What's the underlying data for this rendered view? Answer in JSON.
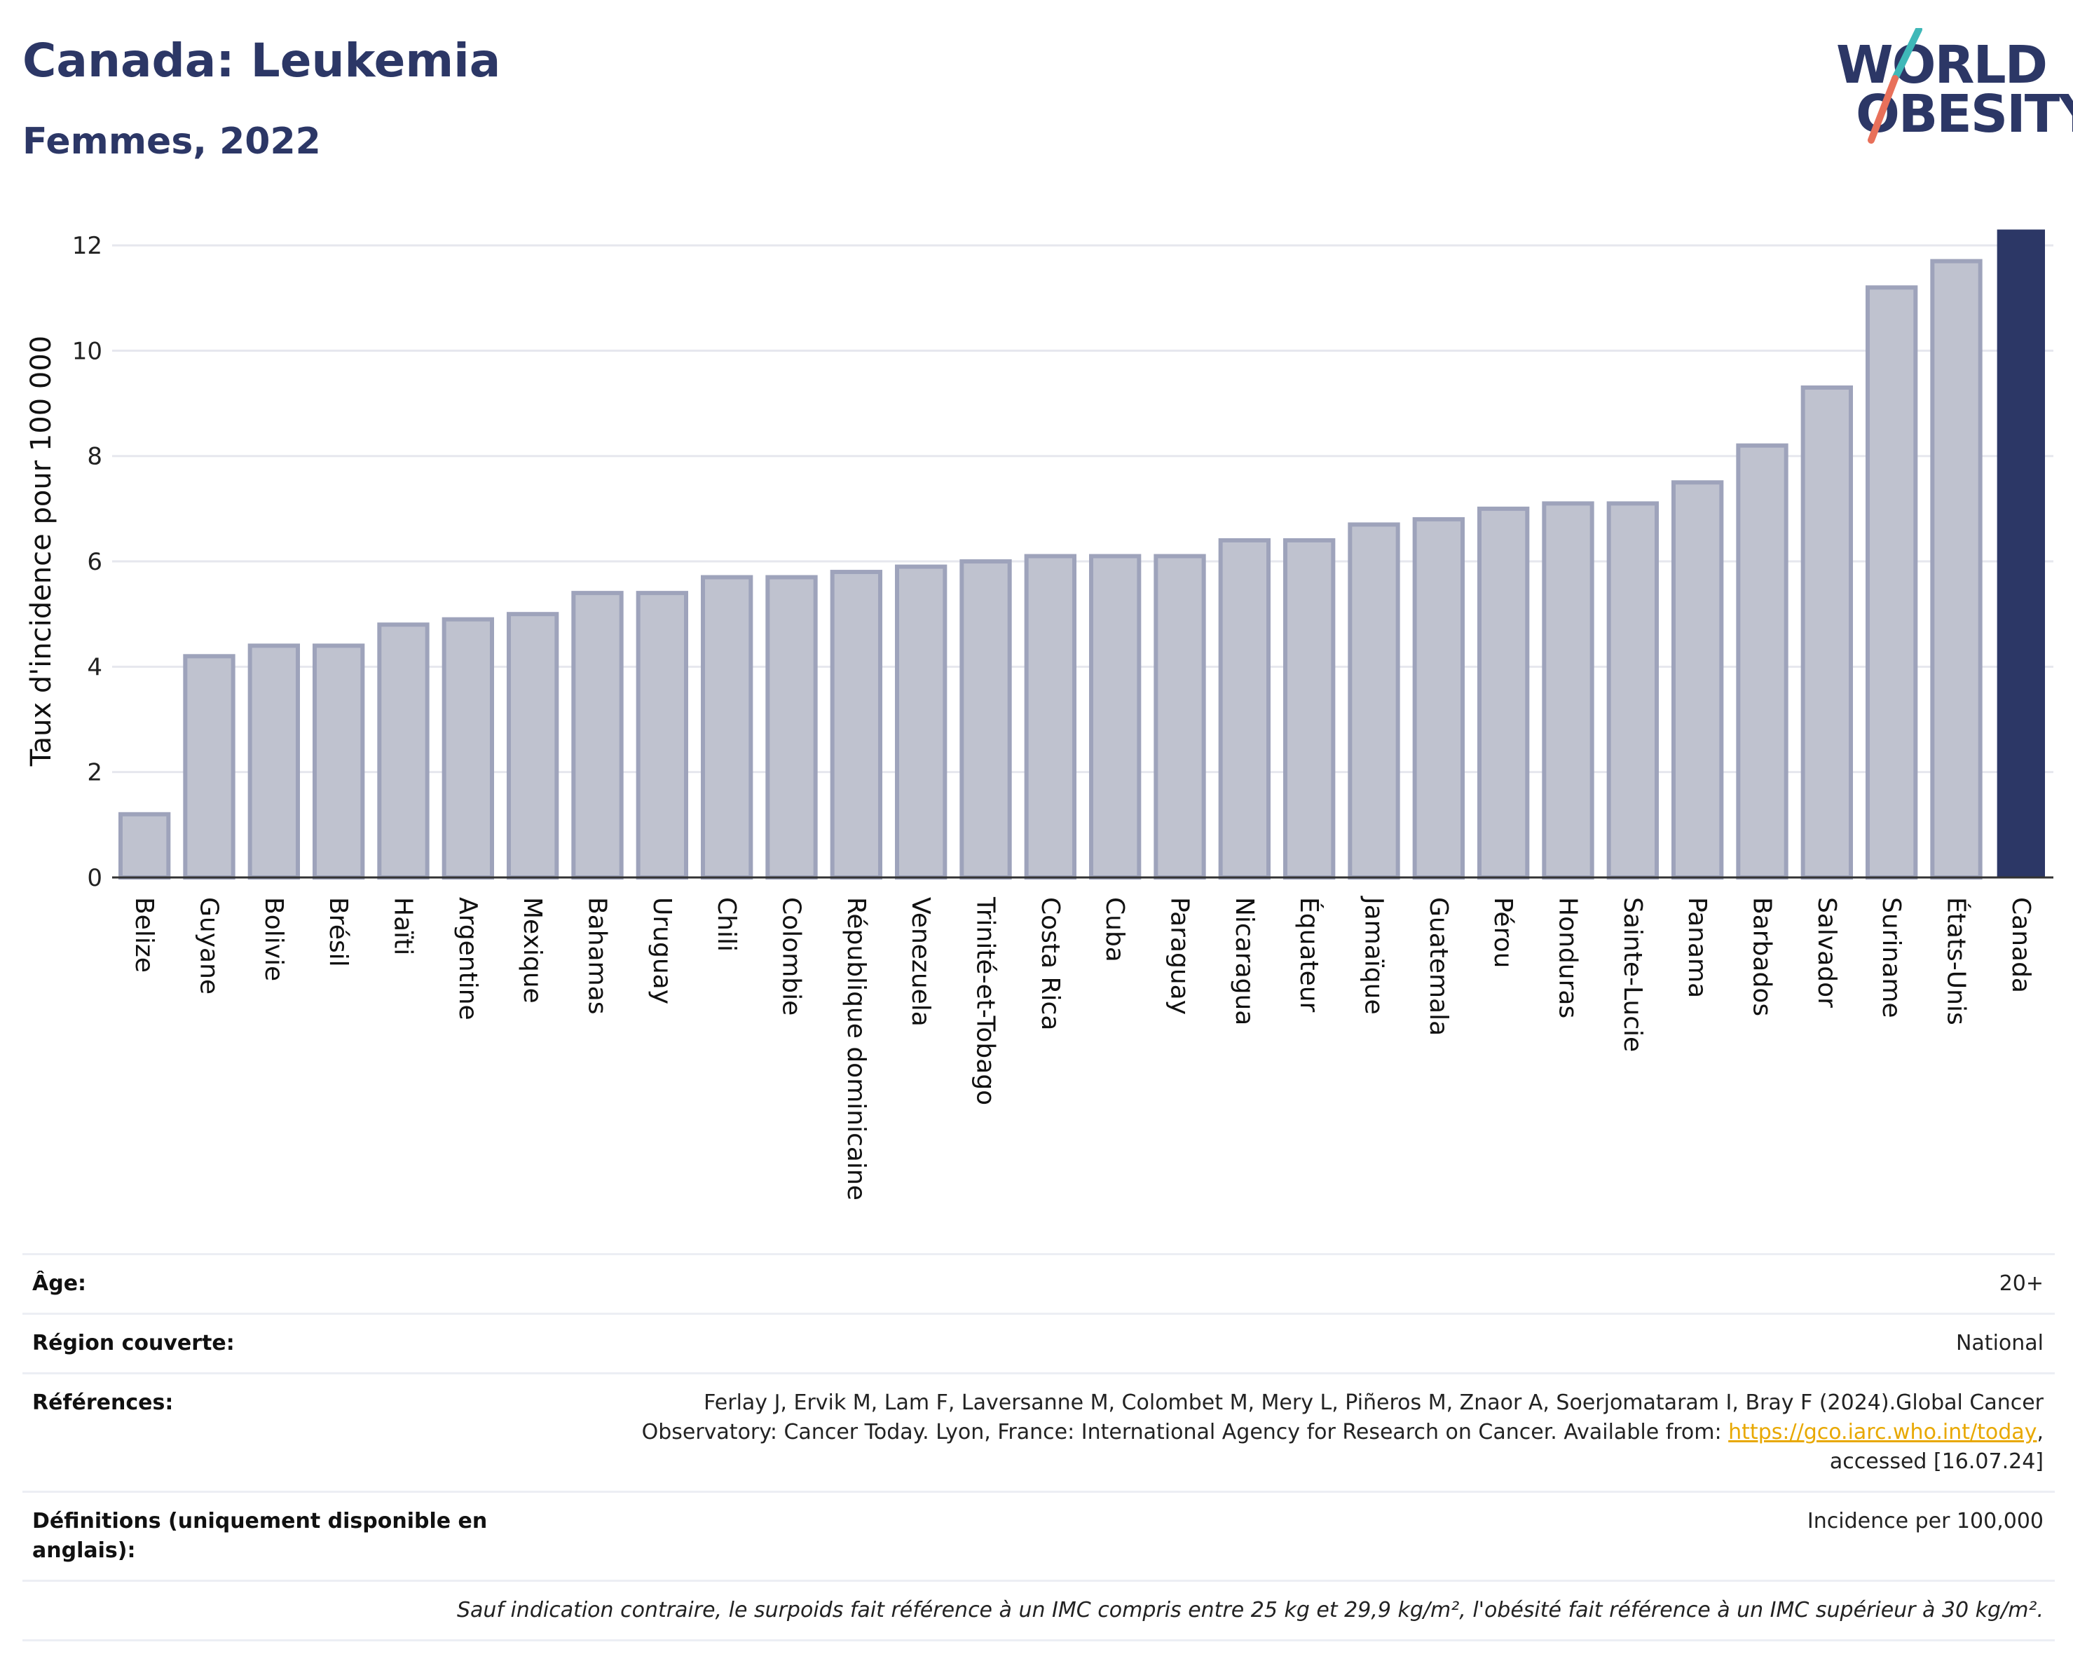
{
  "header": {
    "title": "Canada: Leukemia",
    "subtitle": "Femmes, 2022"
  },
  "logo": {
    "line1": "WORLD",
    "line2": "OBESITY",
    "colors": {
      "text": "#2c3766",
      "slash_top": "#3fb8b8",
      "slash_bottom": "#e8705a"
    }
  },
  "colors": {
    "bar_fill": "#bfc2cf",
    "bar_stroke": "#9ea3bb",
    "highlight": "#2c3766",
    "grid": "#e6e7ee",
    "axis": "#333333",
    "link": "#e8a800"
  },
  "chart_data": {
    "type": "bar",
    "ylabel": "Taux d'incidence pour 100 000",
    "xlabel": "",
    "ylim": [
      0,
      12.4
    ],
    "yticks": [
      0,
      2,
      4,
      6,
      8,
      10,
      12
    ],
    "grid": true,
    "highlight_category": "Canada",
    "categories": [
      "Belize",
      "Guyane",
      "Bolivie",
      "Brésil",
      "Haïti",
      "Argentine",
      "Mexique",
      "Bahamas",
      "Uruguay",
      "Chili",
      "Colombie",
      "République dominicaine",
      "Venezuela",
      "Trinité-et-Tobago",
      "Costa Rica",
      "Cuba",
      "Paraguay",
      "Nicaragua",
      "Équateur",
      "Jamaïque",
      "Guatemala",
      "Pérou",
      "Honduras",
      "Sainte-Lucie",
      "Panama",
      "Barbados",
      "Salvador",
      "Suriname",
      "États-Unis",
      "Canada"
    ],
    "values": [
      1.2,
      4.2,
      4.4,
      4.4,
      4.8,
      4.9,
      5.0,
      5.4,
      5.4,
      5.7,
      5.7,
      5.8,
      5.9,
      6.0,
      6.1,
      6.1,
      6.1,
      6.4,
      6.4,
      6.7,
      6.8,
      7.0,
      7.1,
      7.1,
      7.5,
      8.2,
      9.3,
      11.2,
      11.7,
      12.3
    ]
  },
  "meta": {
    "age_label": "Âge:",
    "age_value": "20+",
    "region_label": "Région couverte:",
    "region_value": "National",
    "references_label": "Références:",
    "references_line1": "Ferlay J, Ervik M, Lam F, Laversanne M, Colombet M, Mery L, Piñeros M, Znaor A, Soerjomataram I, Bray F (2024).Global Cancer",
    "references_line2": "Observatory: Cancer Today. Lyon, France: International Agency for Research on Cancer. Available from:",
    "references_link": "https://gco.iarc.who.int/today",
    "references_after_link": ",",
    "references_line3": "accessed [16.07.24]",
    "definitions_label_line1": "Définitions (uniquement disponible en",
    "definitions_label_line2": "anglais):",
    "definitions_value": "Incidence per 100,000",
    "note": "Sauf indication contraire, le surpoids fait référence à un IMC compris entre 25 kg et 29,9 kg/m², l'obésité fait référence à un IMC supérieur à 30 kg/m²."
  }
}
